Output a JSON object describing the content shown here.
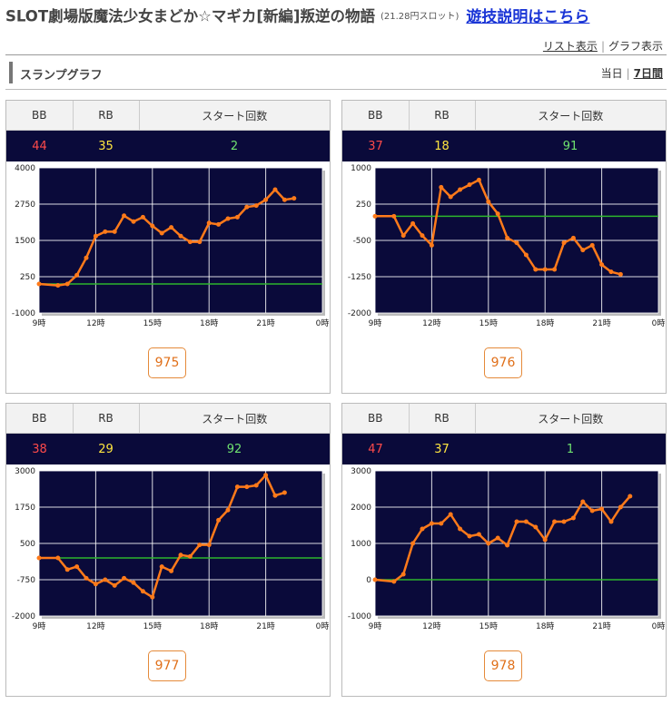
{
  "header": {
    "title": "SLOT劇場版魔法少女まどか☆マギカ[新編]叛逆の物語",
    "subtitle": "(21.28円スロット)",
    "link": "遊技説明はこちら"
  },
  "view_links": {
    "list": "リスト表示",
    "separator": "|",
    "graph": "グラフ表示"
  },
  "section": {
    "label": "スランプグラフ",
    "range_today": "当日",
    "range_separator": "|",
    "range_week": "7日間"
  },
  "stat_headers": {
    "bb": "BB",
    "rb": "RB",
    "start": "スタート回数"
  },
  "colors": {
    "chart_bg": "#0a0a3a",
    "line": "#ff7a1a",
    "baseline": "#2db52d",
    "grid": "#ffffff"
  },
  "machines": [
    {
      "number": "975",
      "bb": "44",
      "rb": "35",
      "start": "2"
    },
    {
      "number": "976",
      "bb": "37",
      "rb": "18",
      "start": "91"
    },
    {
      "number": "977",
      "bb": "38",
      "rb": "29",
      "start": "92"
    },
    {
      "number": "978",
      "bb": "47",
      "rb": "37",
      "start": "1"
    }
  ],
  "chart_data": [
    {
      "type": "line",
      "x_ticks": [
        "9時",
        "12時",
        "15時",
        "18時",
        "21時",
        "0時"
      ],
      "x_range": [
        9,
        24
      ],
      "y_ticks": [
        4000,
        2750,
        1500,
        250,
        -1000
      ],
      "ylim": [
        -1000,
        4000
      ],
      "baseline": 0,
      "series": [
        {
          "x": [
            9,
            10,
            10.5,
            11,
            11.5,
            12,
            12.5,
            13,
            13.5,
            14,
            14.5,
            15,
            15.5,
            16,
            16.5,
            17,
            17.5,
            18,
            18.5,
            19,
            19.5,
            20,
            20.5,
            21,
            21.5,
            22,
            22.5
          ],
          "y": [
            0,
            -50,
            0,
            300,
            900,
            1650,
            1800,
            1800,
            2350,
            2150,
            2300,
            2000,
            1750,
            1950,
            1650,
            1450,
            1450,
            2100,
            2050,
            2250,
            2300,
            2650,
            2700,
            2900,
            3250,
            2900,
            2950
          ]
        }
      ]
    },
    {
      "type": "line",
      "x_ticks": [
        "9時",
        "12時",
        "15時",
        "18時",
        "21時",
        "0時"
      ],
      "x_range": [
        9,
        24
      ],
      "y_ticks": [
        1000,
        250,
        -500,
        -1250,
        -2000
      ],
      "ylim": [
        -2000,
        1000
      ],
      "baseline": 0,
      "series": [
        {
          "x": [
            9,
            10,
            10.5,
            11,
            11.5,
            12,
            12.5,
            13,
            13.5,
            14,
            14.5,
            15,
            15.5,
            16,
            16.5,
            17,
            17.5,
            18,
            18.5,
            19,
            19.5,
            20,
            20.5,
            21,
            21.5,
            22
          ],
          "y": [
            0,
            0,
            -400,
            -150,
            -400,
            -600,
            600,
            400,
            550,
            650,
            750,
            300,
            50,
            -450,
            -550,
            -800,
            -1100,
            -1100,
            -1100,
            -550,
            -450,
            -700,
            -600,
            -1000,
            -1150,
            -1200
          ]
        }
      ]
    },
    {
      "type": "line",
      "x_ticks": [
        "9時",
        "12時",
        "15時",
        "18時",
        "21時",
        "0時"
      ],
      "x_range": [
        9,
        24
      ],
      "y_ticks": [
        3000,
        1750,
        500,
        -750,
        -2000
      ],
      "ylim": [
        -2000,
        3000
      ],
      "baseline": 0,
      "series": [
        {
          "x": [
            9,
            10,
            10.5,
            11,
            11.5,
            12,
            12.5,
            13,
            13.5,
            14,
            14.5,
            15,
            15.5,
            16,
            16.5,
            17,
            17.5,
            18,
            18.5,
            19,
            19.5,
            20,
            20.5,
            21,
            21.5,
            22
          ],
          "y": [
            0,
            0,
            -400,
            -300,
            -700,
            -900,
            -750,
            -950,
            -700,
            -850,
            -1150,
            -1350,
            -300,
            -450,
            100,
            50,
            450,
            450,
            1300,
            1650,
            2450,
            2450,
            2500,
            2850,
            2150,
            2250
          ]
        }
      ]
    },
    {
      "type": "line",
      "x_ticks": [
        "9時",
        "12時",
        "15時",
        "18時",
        "21時",
        "0時"
      ],
      "x_range": [
        9,
        24
      ],
      "y_ticks": [
        3000,
        2000,
        1000,
        0,
        -1000
      ],
      "ylim": [
        -1000,
        3000
      ],
      "baseline": 0,
      "series": [
        {
          "x": [
            9,
            10,
            10.5,
            11,
            11.5,
            12,
            12.5,
            13,
            13.5,
            14,
            14.5,
            15,
            15.5,
            16,
            16.5,
            17,
            17.5,
            18,
            18.5,
            19,
            19.5,
            20,
            20.5,
            21,
            21.5,
            22,
            22.5
          ],
          "y": [
            0,
            -50,
            150,
            1000,
            1400,
            1550,
            1550,
            1800,
            1400,
            1200,
            1250,
            1000,
            1150,
            950,
            1600,
            1600,
            1450,
            1100,
            1600,
            1600,
            1700,
            2150,
            1900,
            1950,
            1600,
            2000,
            2300
          ]
        }
      ]
    }
  ]
}
